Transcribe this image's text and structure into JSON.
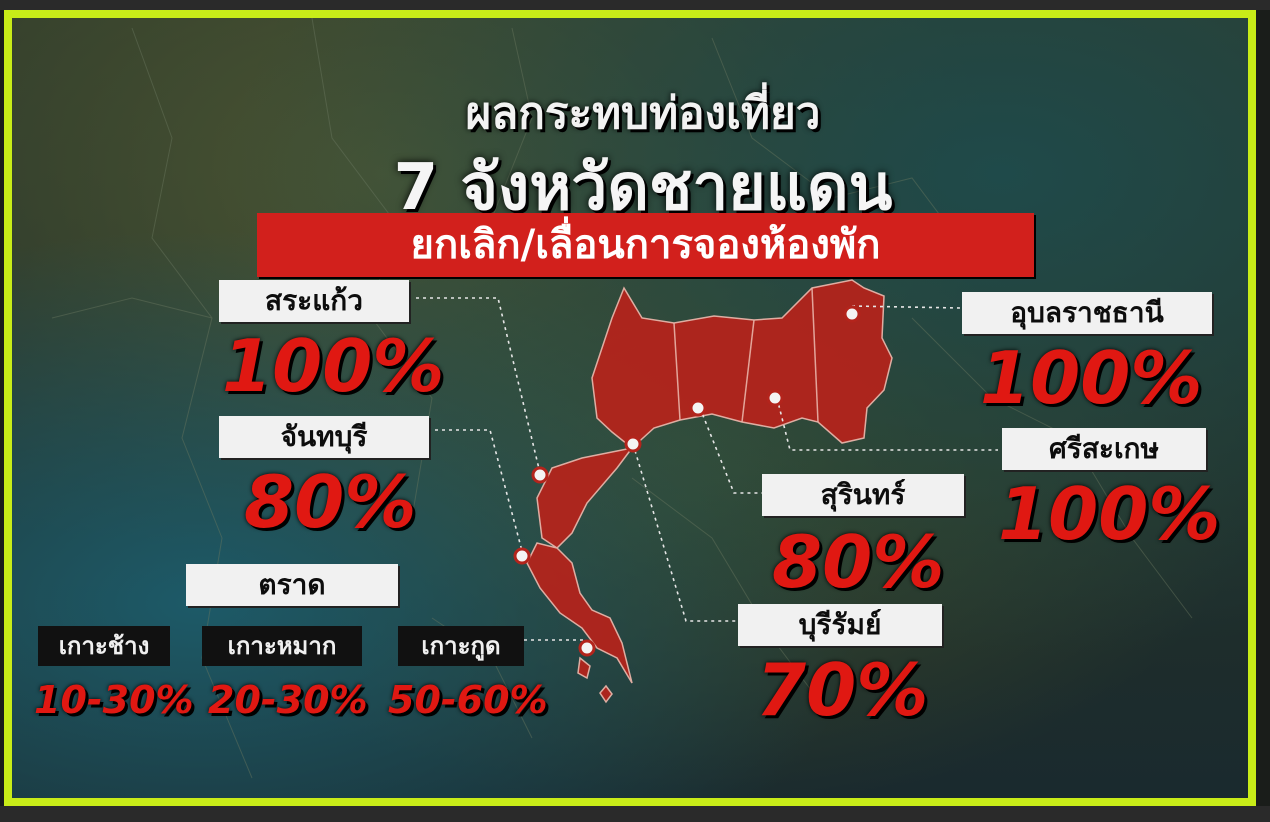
{
  "title_line1": "ผลกระทบท่องเที่ยว",
  "title_line2": "7 จังหวัดชายแดน",
  "banner": "ยกเลิก/เลื่อนการจองห้องพัก",
  "provinces": {
    "sa_kaeo": {
      "name": "สระแก้ว",
      "value": "100%"
    },
    "chanthaburi": {
      "name": "จันทบุรี",
      "value": "80%"
    },
    "ubon": {
      "name": "อุบลราชธานี",
      "value": "100%"
    },
    "sisaket": {
      "name": "ศรีสะเกษ",
      "value": "100%"
    },
    "surin": {
      "name": "สุรินทร์",
      "value": "80%"
    },
    "buriram": {
      "name": "บุรีรัมย์",
      "value": "70%"
    },
    "trat": {
      "name": "ตราด"
    }
  },
  "islands": [
    {
      "name": "เกาะช้าง",
      "value": "10-30%"
    },
    {
      "name": "เกาะหมาก",
      "value": "20-30%"
    },
    {
      "name": "เกาะกูด",
      "value": "50-60%"
    }
  ],
  "colors": {
    "accent_red": "#e01812",
    "banner_red": "#d2201c",
    "frame": "#c8ec18"
  }
}
